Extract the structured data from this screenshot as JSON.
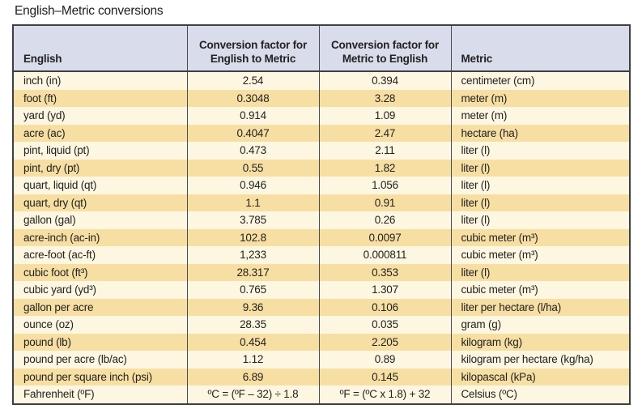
{
  "title": "English–Metric conversions",
  "colors": {
    "header_bg": "#d9dcea",
    "row_cream": "#fdf7e1",
    "row_gold": "#f7dfa3",
    "border": "#3e3e45"
  },
  "table": {
    "columns": [
      "English",
      "Conversion factor for English to Metric",
      "Conversion factor for Metric to English",
      "Metric"
    ],
    "rows": [
      [
        "inch (in)",
        "2.54",
        "0.394",
        "centimeter (cm)"
      ],
      [
        "foot (ft)",
        "0.3048",
        "3.28",
        "meter (m)"
      ],
      [
        "yard (yd)",
        "0.914",
        "1.09",
        "meter (m)"
      ],
      [
        "acre (ac)",
        "0.4047",
        "2.47",
        "hectare (ha)"
      ],
      [
        "pint, liquid (pt)",
        "0.473",
        "2.11",
        "liter (l)"
      ],
      [
        "pint, dry (pt)",
        "0.55",
        "1.82",
        "liter (l)"
      ],
      [
        "quart, liquid (qt)",
        "0.946",
        "1.056",
        "liter (l)"
      ],
      [
        "quart, dry (qt)",
        "1.1",
        "0.91",
        "liter (l)"
      ],
      [
        "gallon (gal)",
        "3.785",
        "0.26",
        "liter (l)"
      ],
      [
        "acre-inch (ac-in)",
        "102.8",
        "0.0097",
        "cubic meter (m³)"
      ],
      [
        "acre-foot (ac-ft)",
        "1,233",
        "0.000811",
        "cubic meter (m³)"
      ],
      [
        "cubic foot (ft³)",
        "28.317",
        "0.353",
        "liter (l)"
      ],
      [
        "cubic yard (yd³)",
        "0.765",
        "1.307",
        "cubic meter (m³)"
      ],
      [
        "gallon per acre",
        "9.36",
        "0.106",
        "liter per hectare (l/ha)"
      ],
      [
        "ounce (oz)",
        "28.35",
        "0.035",
        "gram (g)"
      ],
      [
        "pound (lb)",
        "0.454",
        "2.205",
        "kilogram (kg)"
      ],
      [
        "pound per acre (lb/ac)",
        "1.12",
        "0.89",
        "kilogram per hectare (kg/ha)"
      ],
      [
        "pound per square inch (psi)",
        "6.89",
        "0.145",
        "kilopascal (kPa)"
      ],
      [
        "Fahrenheit (ºF)",
        "ºC = (ºF – 32) ÷ 1.8",
        "ºF = (ºC x 1.8) + 32",
        "Celsius (ºC)"
      ]
    ]
  }
}
